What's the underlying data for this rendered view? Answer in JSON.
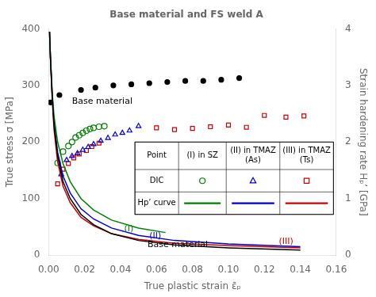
{
  "chart_data": {
    "type": "scatter",
    "title": "Base material and FS weld A",
    "x_label": "True plastic strain ε̄ₚ",
    "y_label": "True stress σ [MPa]",
    "y2_label": "Strain hardening rate Hₚ’ [GPa]",
    "xlim": [
      0,
      0.16
    ],
    "xticks": [
      {
        "value": 0,
        "label": "0.00"
      },
      0.02,
      0.04,
      0.06,
      0.08,
      {
        "value": 0.1,
        "label": "0.10"
      },
      0.12,
      0.14,
      0.16
    ],
    "ylim": [
      0,
      400
    ],
    "yticks": [
      0,
      100,
      200,
      300,
      400
    ],
    "y2lim": [
      0,
      4
    ],
    "y2ticks": [
      0,
      1,
      2,
      3,
      4
    ],
    "grid": false,
    "series": [
      {
        "type": "line",
        "axis": "y2",
        "color": "#000000",
        "x": [
          0.0005,
          0.001,
          0.002,
          0.003,
          0.005,
          0.008,
          0.012,
          0.018,
          0.025,
          0.035,
          0.05,
          0.07,
          0.1,
          0.14
        ],
        "values": [
          3.95,
          3.5,
          2.8,
          2.3,
          1.75,
          1.3,
          1.0,
          0.72,
          0.54,
          0.38,
          0.26,
          0.18,
          0.13,
          0.09
        ]
      },
      {
        "type": "line",
        "axis": "y2",
        "color": "#008000",
        "x": [
          0.0005,
          0.001,
          0.002,
          0.003,
          0.005,
          0.008,
          0.012,
          0.018,
          0.025,
          0.035,
          0.05,
          0.065
        ],
        "values": [
          3.95,
          3.52,
          2.88,
          2.46,
          2.0,
          1.62,
          1.3,
          1.0,
          0.8,
          0.62,
          0.48,
          0.4
        ]
      },
      {
        "type": "line",
        "axis": "y2",
        "color": "#0000CD",
        "x": [
          0.0005,
          0.001,
          0.002,
          0.003,
          0.005,
          0.008,
          0.012,
          0.018,
          0.025,
          0.035,
          0.05,
          0.07,
          0.1,
          0.14
        ],
        "values": [
          3.95,
          3.5,
          2.82,
          2.35,
          1.82,
          1.4,
          1.1,
          0.82,
          0.64,
          0.48,
          0.35,
          0.26,
          0.2,
          0.15
        ]
      },
      {
        "type": "line",
        "axis": "y2",
        "color": "#CC0000",
        "x": [
          0.0005,
          0.001,
          0.002,
          0.003,
          0.005,
          0.008,
          0.012,
          0.018,
          0.025,
          0.035,
          0.05,
          0.07,
          0.1,
          0.14
        ],
        "values": [
          3.95,
          3.47,
          2.75,
          2.22,
          1.65,
          1.22,
          0.93,
          0.67,
          0.52,
          0.38,
          0.28,
          0.21,
          0.17,
          0.13
        ]
      },
      {
        "type": "scatter",
        "marker": "circle",
        "color": "#000000",
        "x": [
          0.001,
          0.006,
          0.018,
          0.026,
          0.036,
          0.046,
          0.056,
          0.066,
          0.076,
          0.086,
          0.096,
          0.106
        ],
        "values": [
          270,
          283,
          292,
          296,
          300,
          302,
          304,
          306,
          308,
          308,
          310,
          313
        ]
      },
      {
        "type": "scatter",
        "marker": "circle-open",
        "color": "#008000",
        "x": [
          0.005,
          0.008,
          0.011,
          0.013,
          0.015,
          0.017,
          0.019,
          0.021,
          0.023,
          0.025,
          0.028,
          0.031
        ],
        "values": [
          163,
          183,
          193,
          200,
          208,
          212,
          216,
          220,
          223,
          225,
          227,
          228
        ]
      },
      {
        "type": "scatter",
        "marker": "triangle-open",
        "color": "#0000CD",
        "x": [
          0.007,
          0.01,
          0.013,
          0.016,
          0.019,
          0.022,
          0.025,
          0.029,
          0.033,
          0.037,
          0.041,
          0.045,
          0.05
        ],
        "values": [
          143,
          168,
          175,
          180,
          186,
          191,
          196,
          202,
          207,
          213,
          216,
          220,
          228
        ]
      },
      {
        "type": "scatter",
        "marker": "square-open",
        "color": "#CC0000",
        "x": [
          0.005,
          0.008,
          0.011,
          0.014,
          0.017,
          0.021,
          0.024,
          0.028,
          0.06,
          0.07,
          0.08,
          0.09,
          0.1,
          0.11,
          0.12,
          0.132,
          0.142
        ],
        "values": [
          126,
          152,
          162,
          172,
          179,
          185,
          192,
          198,
          225,
          222,
          224,
          227,
          230,
          226,
          247,
          244,
          246
        ]
      }
    ],
    "annotations": [
      {
        "text": "(I)",
        "x": 0.042,
        "y": 0.42,
        "axis": "y2",
        "color": "#008000"
      },
      {
        "text": "(II)",
        "x": 0.056,
        "y": 0.3,
        "axis": "y2",
        "color": "#0000CD"
      },
      {
        "text": "(III)",
        "x": 0.128,
        "y": 0.2,
        "axis": "y2",
        "color": "#CC0000"
      },
      {
        "text": "Base material",
        "x": 0.055,
        "y": 0.14,
        "axis": "y2",
        "color": "#000000"
      },
      {
        "text": "Base material",
        "x": 0.013,
        "y": 268,
        "axis": "y",
        "color": "#000000"
      }
    ],
    "legend_table": {
      "header": "Point",
      "rows": [
        "DIC",
        "Hp’ curve"
      ],
      "columns": [
        {
          "label": "(I) in SZ",
          "color": "#008000",
          "marker": "circle-open"
        },
        {
          "label": "(II) in TMAZ\n(As)",
          "color": "#0000CD",
          "marker": "triangle-open"
        },
        {
          "label": "(III) in TMAZ\n(Ts)",
          "color": "#CC0000",
          "marker": "square-open"
        }
      ]
    }
  }
}
